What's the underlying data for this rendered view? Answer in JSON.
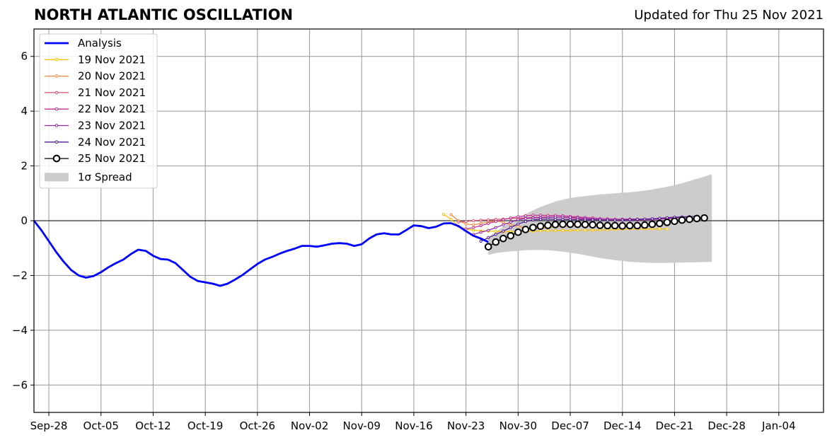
{
  "header": {
    "title": "NORTH ATLANTIC OSCILLATION",
    "updated": "Updated for Thu 25 Nov 2021"
  },
  "chart_data": {
    "type": "line",
    "title": "NORTH ATLANTIC OSCILLATION",
    "subtitle": "Updated for Thu 25 Nov 2021",
    "xlabel": "",
    "ylabel": "",
    "x_unit": "days",
    "xlim": [
      "2021-09-26",
      "2022-01-10"
    ],
    "ylim": [
      -7,
      7
    ],
    "grid": true,
    "legend_position": "top-left",
    "x_ticks": [
      {
        "date": "2021-09-28",
        "label": "Sep-28"
      },
      {
        "date": "2021-10-05",
        "label": "Oct-05"
      },
      {
        "date": "2021-10-12",
        "label": "Oct-12"
      },
      {
        "date": "2021-10-19",
        "label": "Oct-19"
      },
      {
        "date": "2021-10-26",
        "label": "Oct-26"
      },
      {
        "date": "2021-11-02",
        "label": "Nov-02"
      },
      {
        "date": "2021-11-09",
        "label": "Nov-09"
      },
      {
        "date": "2021-11-16",
        "label": "Nov-16"
      },
      {
        "date": "2021-11-23",
        "label": "Nov-23"
      },
      {
        "date": "2021-11-30",
        "label": "Nov-30"
      },
      {
        "date": "2021-12-07",
        "label": "Dec-07"
      },
      {
        "date": "2021-12-14",
        "label": "Dec-14"
      },
      {
        "date": "2021-12-21",
        "label": "Dec-21"
      },
      {
        "date": "2021-12-28",
        "label": "Dec-28"
      },
      {
        "date": "2022-01-04",
        "label": "Jan-04"
      }
    ],
    "y_ticks": [
      {
        "value": 6,
        "label": "6"
      },
      {
        "value": 4,
        "label": "4"
      },
      {
        "value": 2,
        "label": "2"
      },
      {
        "value": 0,
        "label": "0"
      },
      {
        "value": -2,
        "label": "−2"
      },
      {
        "value": -4,
        "label": "−4"
      },
      {
        "value": -6,
        "label": "−6"
      }
    ],
    "series": [
      {
        "name": "Analysis",
        "color": "#0000ff",
        "marker": "none",
        "start": "2021-09-26",
        "values": [
          0.0,
          -0.35,
          -0.75,
          -1.15,
          -1.5,
          -1.8,
          -2.0,
          -2.08,
          -2.02,
          -1.88,
          -1.7,
          -1.55,
          -1.42,
          -1.22,
          -1.06,
          -1.1,
          -1.28,
          -1.4,
          -1.42,
          -1.55,
          -1.8,
          -2.05,
          -2.2,
          -2.25,
          -2.3,
          -2.38,
          -2.3,
          -2.15,
          -1.98,
          -1.78,
          -1.58,
          -1.42,
          -1.32,
          -1.2,
          -1.1,
          -1.02,
          -0.92,
          -0.92,
          -0.95,
          -0.9,
          -0.84,
          -0.82,
          -0.84,
          -0.92,
          -0.86,
          -0.65,
          -0.5,
          -0.46,
          -0.5,
          -0.5,
          -0.34,
          -0.17,
          -0.2,
          -0.27,
          -0.22,
          -0.1,
          -0.09,
          -0.2,
          -0.38,
          -0.55,
          -0.65,
          -0.78
        ]
      },
      {
        "name": "19 Nov 2021",
        "color": "#ffc100",
        "marker": "dot",
        "start": "2021-11-20",
        "values": [
          0.23,
          0.05,
          -0.2,
          -0.3,
          -0.35,
          -0.37,
          -0.38,
          -0.39,
          -0.4,
          -0.4,
          -0.4,
          -0.39,
          -0.38,
          -0.37,
          -0.37,
          -0.36,
          -0.36,
          -0.36,
          -0.35,
          -0.35,
          -0.35,
          -0.34,
          -0.33,
          -0.32,
          -0.31,
          -0.3,
          -0.3,
          -0.3,
          -0.3,
          -0.3,
          -0.3
        ]
      },
      {
        "name": "20 Nov 2021",
        "color": "#f58a3a",
        "marker": "dot",
        "start": "2021-11-21",
        "values": [
          0.22,
          0.0,
          -0.12,
          -0.15,
          -0.1,
          -0.05,
          -0.01,
          -0.06,
          -0.15,
          -0.2,
          -0.26,
          -0.3,
          -0.28,
          -0.25,
          -0.22,
          -0.2,
          -0.19,
          -0.18,
          -0.18,
          -0.18,
          -0.19,
          -0.2,
          -0.2,
          -0.2,
          -0.2,
          -0.2,
          -0.19,
          -0.17,
          -0.15,
          -0.13
        ]
      },
      {
        "name": "21 Nov 2021",
        "color": "#dd4f6a",
        "marker": "dot",
        "start": "2021-11-22",
        "values": [
          -0.05,
          -0.03,
          0.0,
          0.02,
          0.03,
          0.05,
          0.06,
          0.08,
          0.09,
          0.1,
          0.12,
          0.13,
          0.14,
          0.13,
          0.12,
          0.1,
          0.08,
          0.06,
          0.05,
          0.04,
          0.03,
          0.03,
          0.02,
          0.02,
          0.03,
          0.04,
          0.05,
          0.06,
          0.07,
          0.08
        ]
      },
      {
        "name": "22 Nov 2021",
        "color": "#c02e94",
        "marker": "dot",
        "start": "2021-11-23",
        "values": [
          -0.3,
          -0.25,
          -0.18,
          -0.1,
          -0.03,
          0.04,
          0.1,
          0.15,
          0.18,
          0.2,
          0.2,
          0.19,
          0.19,
          0.18,
          0.16,
          0.14,
          0.12,
          0.1,
          0.08,
          0.07,
          0.06,
          0.06,
          0.06,
          0.06,
          0.06,
          0.07,
          0.08,
          0.09,
          0.1,
          0.11
        ]
      },
      {
        "name": "23 Nov 2021",
        "color": "#9427a8",
        "marker": "dot",
        "start": "2021-11-24",
        "values": [
          -0.5,
          -0.42,
          -0.35,
          -0.25,
          -0.15,
          -0.05,
          0.04,
          0.08,
          0.1,
          0.11,
          0.12,
          0.13,
          0.13,
          0.12,
          0.1,
          0.08,
          0.06,
          0.04,
          0.03,
          0.02,
          0.02,
          0.02,
          0.03,
          0.04,
          0.05,
          0.06,
          0.08,
          0.1,
          0.12,
          0.13
        ]
      },
      {
        "name": "24 Nov 2021",
        "color": "#4e1a96",
        "marker": "dot",
        "start": "2021-11-25",
        "values": [
          -0.75,
          -0.62,
          -0.5,
          -0.38,
          -0.25,
          -0.12,
          -0.03,
          0.03,
          0.05,
          0.06,
          0.05,
          0.05,
          0.04,
          0.04,
          0.03,
          0.03,
          0.03,
          0.02,
          0.02,
          0.03,
          0.04,
          0.05,
          0.06,
          0.07,
          0.09,
          0.11,
          0.13,
          0.14,
          0.15,
          0.16
        ]
      },
      {
        "name": "25 Nov 2021",
        "color": "#000000",
        "marker": "circle",
        "start": "2021-11-26",
        "values": [
          -0.95,
          -0.78,
          -0.65,
          -0.55,
          -0.42,
          -0.32,
          -0.25,
          -0.2,
          -0.17,
          -0.14,
          -0.13,
          -0.13,
          -0.13,
          -0.14,
          -0.15,
          -0.17,
          -0.18,
          -0.18,
          -0.19,
          -0.18,
          -0.18,
          -0.16,
          -0.13,
          -0.1,
          -0.06,
          -0.02,
          0.02,
          0.05,
          0.08,
          0.1
        ]
      }
    ],
    "spread": {
      "name": "1σ Spread",
      "color": "#cccccc",
      "start": "2021-11-26",
      "upper": [
        -0.6,
        -0.4,
        -0.22,
        -0.05,
        0.1,
        0.24,
        0.38,
        0.5,
        0.6,
        0.7,
        0.77,
        0.83,
        0.87,
        0.9,
        0.93,
        0.96,
        0.98,
        1.0,
        1.02,
        1.04,
        1.07,
        1.1,
        1.14,
        1.19,
        1.24,
        1.3,
        1.37,
        1.45,
        1.53,
        1.61,
        1.7
      ],
      "lower": [
        -1.25,
        -1.18,
        -1.15,
        -1.12,
        -1.1,
        -1.08,
        -1.07,
        -1.07,
        -1.08,
        -1.1,
        -1.13,
        -1.17,
        -1.21,
        -1.26,
        -1.31,
        -1.36,
        -1.4,
        -1.44,
        -1.47,
        -1.5,
        -1.52,
        -1.53,
        -1.54,
        -1.54,
        -1.54,
        -1.53,
        -1.53,
        -1.52,
        -1.52,
        -1.51,
        -1.5
      ]
    }
  }
}
